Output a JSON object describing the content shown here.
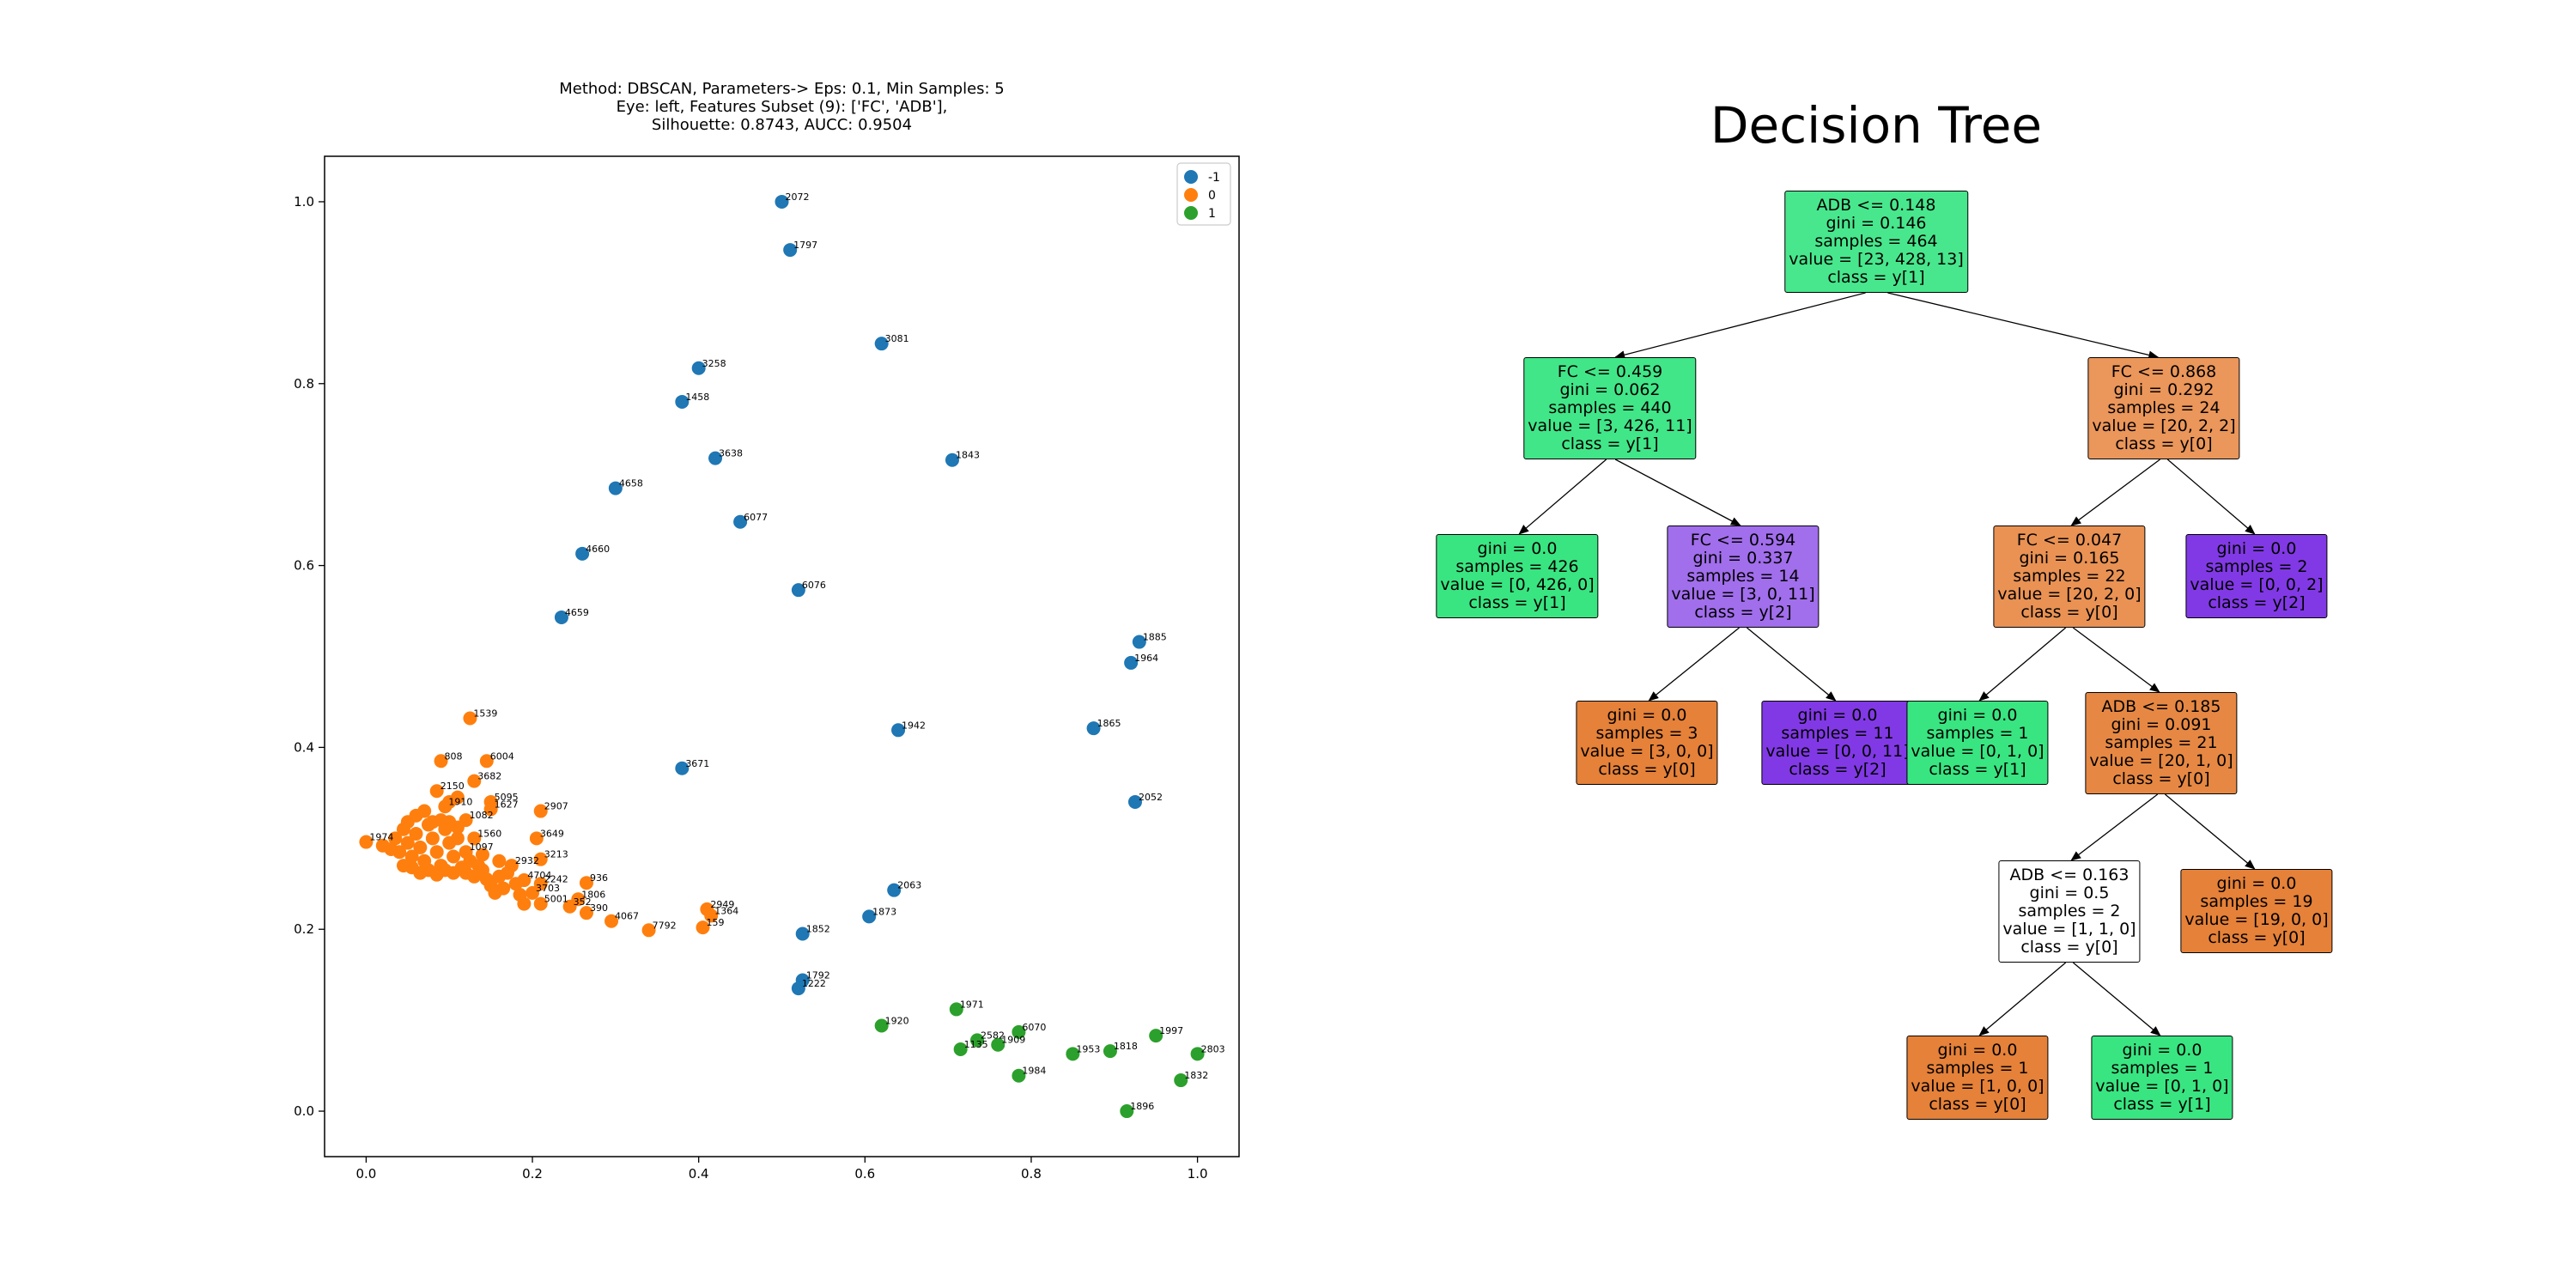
{
  "scatter": {
    "title_lines": [
      "Method: DBSCAN, Parameters-> Eps: 0.1, Min Samples: 5",
      "Eye: left, Features Subset (9): ['FC', 'ADB'],",
      "Silhouette: 0.8743, AUCC: 0.9504"
    ],
    "legend": [
      {
        "label": "-1",
        "color": "#1f77b4"
      },
      {
        "label": "0",
        "color": "#ff7f0e"
      },
      {
        "label": "1",
        "color": "#2ca02c"
      }
    ]
  },
  "chart_data": [
    {
      "type": "scatter",
      "title": "Method: DBSCAN, Parameters-> Eps: 0.1, Min Samples: 5\nEye: left, Features Subset (9): ['FC', 'ADB'],\nSilhouette: 0.8743, AUCC: 0.9504",
      "xlabel": "",
      "ylabel": "",
      "xlim": [
        -0.05,
        1.05
      ],
      "ylim": [
        -0.05,
        1.05
      ],
      "xticks": [
        "0.0",
        "0.2",
        "0.4",
        "0.6",
        "0.8",
        "1.0"
      ],
      "yticks": [
        "0.0",
        "0.2",
        "0.4",
        "0.6",
        "0.8",
        "1.0"
      ],
      "grid": false,
      "legend_position": "top-right",
      "series": [
        {
          "name": "-1",
          "color": "#1f77b4",
          "points": [
            {
              "x": 0.5,
              "y": 1.0,
              "label": "2072"
            },
            {
              "x": 0.51,
              "y": 0.947,
              "label": "1797"
            },
            {
              "x": 0.62,
              "y": 0.844,
              "label": "3081"
            },
            {
              "x": 0.4,
              "y": 0.817,
              "label": "3258"
            },
            {
              "x": 0.38,
              "y": 0.78,
              "label": "1458"
            },
            {
              "x": 0.42,
              "y": 0.718,
              "label": "3638"
            },
            {
              "x": 0.705,
              "y": 0.716,
              "label": "1843"
            },
            {
              "x": 0.3,
              "y": 0.685,
              "label": "4658"
            },
            {
              "x": 0.45,
              "y": 0.648,
              "label": "6077"
            },
            {
              "x": 0.26,
              "y": 0.613,
              "label": "4660"
            },
            {
              "x": 0.52,
              "y": 0.573,
              "label": "6076"
            },
            {
              "x": 0.235,
              "y": 0.543,
              "label": "4659"
            },
            {
              "x": 0.93,
              "y": 0.516,
              "label": "1885"
            },
            {
              "x": 0.92,
              "y": 0.493,
              "label": "1964"
            },
            {
              "x": 0.64,
              "y": 0.419,
              "label": "1942"
            },
            {
              "x": 0.875,
              "y": 0.421,
              "label": "1865"
            },
            {
              "x": 0.38,
              "y": 0.377,
              "label": "3671"
            },
            {
              "x": 0.925,
              "y": 0.34,
              "label": "2052"
            },
            {
              "x": 0.635,
              "y": 0.243,
              "label": "2063"
            },
            {
              "x": 0.605,
              "y": 0.214,
              "label": "1873"
            },
            {
              "x": 0.525,
              "y": 0.195,
              "label": "1852"
            },
            {
              "x": 0.525,
              "y": 0.144,
              "label": "1792"
            },
            {
              "x": 0.52,
              "y": 0.135,
              "label": "1222"
            }
          ]
        },
        {
          "name": "0",
          "color": "#ff7f0e",
          "points": [
            {
              "x": 0.125,
              "y": 0.432,
              "label": "1539"
            },
            {
              "x": 0.09,
              "y": 0.385,
              "label": "808"
            },
            {
              "x": 0.145,
              "y": 0.385,
              "label": "6004"
            },
            {
              "x": 0.13,
              "y": 0.363,
              "label": "3682"
            },
            {
              "x": 0.15,
              "y": 0.34,
              "label": "5095"
            },
            {
              "x": 0.15,
              "y": 0.332,
              "label": "1627"
            },
            {
              "x": 0.21,
              "y": 0.33,
              "label": "2907"
            },
            {
              "x": 0.085,
              "y": 0.352,
              "label": "2150"
            },
            {
              "x": 0.095,
              "y": 0.335,
              "label": "1910"
            },
            {
              "x": 0.205,
              "y": 0.3,
              "label": "3649"
            },
            {
              "x": 0.21,
              "y": 0.277,
              "label": "3213"
            },
            {
              "x": 0.265,
              "y": 0.251,
              "label": "936"
            },
            {
              "x": 0.19,
              "y": 0.254,
              "label": "4704"
            },
            {
              "x": 0.255,
              "y": 0.233,
              "label": "1806"
            },
            {
              "x": 0.245,
              "y": 0.225,
              "label": "352"
            },
            {
              "x": 0.265,
              "y": 0.218,
              "label": "390"
            },
            {
              "x": 0.295,
              "y": 0.209,
              "label": "4067"
            },
            {
              "x": 0.34,
              "y": 0.199,
              "label": "7792"
            },
            {
              "x": 0.41,
              "y": 0.222,
              "label": "2949"
            },
            {
              "x": 0.415,
              "y": 0.215,
              "label": "1364"
            },
            {
              "x": 0.405,
              "y": 0.202,
              "label": "159"
            },
            {
              "x": 0.0,
              "y": 0.296,
              "label": "1974"
            },
            {
              "x": 0.12,
              "y": 0.32,
              "label": "1082"
            },
            {
              "x": 0.13,
              "y": 0.3,
              "label": "1560"
            },
            {
              "x": 0.12,
              "y": 0.285,
              "label": "1097"
            },
            {
              "x": 0.175,
              "y": 0.27,
              "label": "2932"
            },
            {
              "x": 0.21,
              "y": 0.25,
              "label": "2242"
            },
            {
              "x": 0.2,
              "y": 0.24,
              "label": "3703"
            },
            {
              "x": 0.21,
              "y": 0.228,
              "label": "5001"
            },
            {
              "x": 0.035,
              "y": 0.3
            },
            {
              "x": 0.04,
              "y": 0.285
            },
            {
              "x": 0.045,
              "y": 0.31
            },
            {
              "x": 0.05,
              "y": 0.295
            },
            {
              "x": 0.055,
              "y": 0.28
            },
            {
              "x": 0.06,
              "y": 0.305
            },
            {
              "x": 0.065,
              "y": 0.29
            },
            {
              "x": 0.07,
              "y": 0.275
            },
            {
              "x": 0.075,
              "y": 0.315
            },
            {
              "x": 0.08,
              "y": 0.3
            },
            {
              "x": 0.085,
              "y": 0.285
            },
            {
              "x": 0.09,
              "y": 0.27
            },
            {
              "x": 0.095,
              "y": 0.31
            },
            {
              "x": 0.1,
              "y": 0.295
            },
            {
              "x": 0.105,
              "y": 0.28
            },
            {
              "x": 0.11,
              "y": 0.3
            },
            {
              "x": 0.115,
              "y": 0.268
            },
            {
              "x": 0.12,
              "y": 0.262
            },
            {
              "x": 0.125,
              "y": 0.275
            },
            {
              "x": 0.13,
              "y": 0.258
            },
            {
              "x": 0.14,
              "y": 0.265
            },
            {
              "x": 0.145,
              "y": 0.255
            },
            {
              "x": 0.15,
              "y": 0.248
            },
            {
              "x": 0.155,
              "y": 0.24
            },
            {
              "x": 0.16,
              "y": 0.258
            },
            {
              "x": 0.165,
              "y": 0.245
            },
            {
              "x": 0.17,
              "y": 0.262
            },
            {
              "x": 0.18,
              "y": 0.25
            },
            {
              "x": 0.185,
              "y": 0.238
            },
            {
              "x": 0.19,
              "y": 0.228
            },
            {
              "x": 0.02,
              "y": 0.292
            },
            {
              "x": 0.03,
              "y": 0.288
            },
            {
              "x": 0.06,
              "y": 0.325
            },
            {
              "x": 0.07,
              "y": 0.33
            },
            {
              "x": 0.08,
              "y": 0.318
            },
            {
              "x": 0.09,
              "y": 0.32
            },
            {
              "x": 0.1,
              "y": 0.318
            },
            {
              "x": 0.11,
              "y": 0.312
            },
            {
              "x": 0.075,
              "y": 0.265
            },
            {
              "x": 0.085,
              "y": 0.26
            },
            {
              "x": 0.095,
              "y": 0.265
            },
            {
              "x": 0.105,
              "y": 0.262
            },
            {
              "x": 0.135,
              "y": 0.27
            },
            {
              "x": 0.11,
              "y": 0.345
            },
            {
              "x": 0.1,
              "y": 0.34
            },
            {
              "x": 0.14,
              "y": 0.282
            },
            {
              "x": 0.16,
              "y": 0.275
            },
            {
              "x": 0.05,
              "y": 0.318
            },
            {
              "x": 0.045,
              "y": 0.27
            },
            {
              "x": 0.055,
              "y": 0.268
            },
            {
              "x": 0.065,
              "y": 0.262
            }
          ]
        },
        {
          "name": "1",
          "color": "#2ca02c",
          "points": [
            {
              "x": 0.71,
              "y": 0.112,
              "label": "1971"
            },
            {
              "x": 0.62,
              "y": 0.094,
              "label": "1920"
            },
            {
              "x": 0.785,
              "y": 0.087,
              "label": "6070"
            },
            {
              "x": 0.735,
              "y": 0.078,
              "label": "2582"
            },
            {
              "x": 0.76,
              "y": 0.073,
              "label": "1909"
            },
            {
              "x": 0.715,
              "y": 0.068,
              "label": "1135"
            },
            {
              "x": 0.85,
              "y": 0.063,
              "label": "1953"
            },
            {
              "x": 0.895,
              "y": 0.066,
              "label": "1818"
            },
            {
              "x": 0.95,
              "y": 0.083,
              "label": "1997"
            },
            {
              "x": 1.0,
              "y": 0.063,
              "label": "2803"
            },
            {
              "x": 0.785,
              "y": 0.039,
              "label": "1984"
            },
            {
              "x": 0.98,
              "y": 0.034,
              "label": "1832"
            },
            {
              "x": 0.915,
              "y": 0.0,
              "label": "1896"
            }
          ]
        }
      ]
    }
  ],
  "tree": {
    "title": "Decision Tree",
    "nodes": [
      {
        "id": "n0",
        "color": "#48e78d",
        "lines": [
          "ADB <= 0.148",
          "gini = 0.146",
          "samples = 464",
          "value = [23, 428, 13]",
          "class = y[1]"
        ]
      },
      {
        "id": "n1",
        "color": "#41e688",
        "lines": [
          "FC <= 0.459",
          "gini = 0.062",
          "samples = 440",
          "value = [3, 426, 11]",
          "class = y[1]"
        ]
      },
      {
        "id": "n2",
        "color": "#eb965a",
        "lines": [
          "FC <= 0.868",
          "gini = 0.292",
          "samples = 24",
          "value = [20, 2, 2]",
          "class = y[0]"
        ]
      },
      {
        "id": "n3",
        "color": "#39e581",
        "lines": [
          "gini = 0.0",
          "samples = 426",
          "value = [0, 426, 0]",
          "class = y[1]"
        ]
      },
      {
        "id": "n4",
        "color": "#a16eec",
        "lines": [
          "FC <= 0.594",
          "gini = 0.337",
          "samples = 14",
          "value = [3, 0, 11]",
          "class = y[2]"
        ]
      },
      {
        "id": "n5",
        "color": "#e99254",
        "lines": [
          "FC <= 0.047",
          "gini = 0.165",
          "samples = 22",
          "value = [20, 2, 0]",
          "class = y[0]"
        ]
      },
      {
        "id": "n6",
        "color": "#8139e5",
        "lines": [
          "gini = 0.0",
          "samples = 2",
          "value = [0, 0, 2]",
          "class = y[2]"
        ]
      },
      {
        "id": "n7",
        "color": "#e58139",
        "lines": [
          "gini = 0.0",
          "samples = 3",
          "value = [3, 0, 0]",
          "class = y[0]"
        ]
      },
      {
        "id": "n8",
        "color": "#8139e5",
        "lines": [
          "gini = 0.0",
          "samples = 11",
          "value = [0, 0, 11]",
          "class = y[2]"
        ]
      },
      {
        "id": "n9",
        "color": "#39e581",
        "lines": [
          "gini = 0.0",
          "samples = 1",
          "value = [0, 1, 0]",
          "class = y[1]"
        ]
      },
      {
        "id": "n10",
        "color": "#e68843",
        "lines": [
          "ADB <= 0.185",
          "gini = 0.091",
          "samples = 21",
          "value = [20, 1, 0]",
          "class = y[0]"
        ]
      },
      {
        "id": "n11",
        "color": "#ffffff",
        "lines": [
          "ADB <= 0.163",
          "gini = 0.5",
          "samples = 2",
          "value = [1, 1, 0]",
          "class = y[0]"
        ]
      },
      {
        "id": "n12",
        "color": "#e58139",
        "lines": [
          "gini = 0.0",
          "samples = 19",
          "value = [19, 0, 0]",
          "class = y[0]"
        ]
      },
      {
        "id": "n13",
        "color": "#e58139",
        "lines": [
          "gini = 0.0",
          "samples = 1",
          "value = [1, 0, 0]",
          "class = y[0]"
        ]
      },
      {
        "id": "n14",
        "color": "#39e581",
        "lines": [
          "gini = 0.0",
          "samples = 1",
          "value = [0, 1, 0]",
          "class = y[1]"
        ]
      }
    ],
    "edges": [
      [
        "n0",
        "n1"
      ],
      [
        "n0",
        "n2"
      ],
      [
        "n1",
        "n3"
      ],
      [
        "n1",
        "n4"
      ],
      [
        "n2",
        "n5"
      ],
      [
        "n2",
        "n6"
      ],
      [
        "n4",
        "n7"
      ],
      [
        "n4",
        "n8"
      ],
      [
        "n5",
        "n9"
      ],
      [
        "n5",
        "n10"
      ],
      [
        "n10",
        "n11"
      ],
      [
        "n10",
        "n12"
      ],
      [
        "n11",
        "n13"
      ],
      [
        "n11",
        "n14"
      ]
    ]
  }
}
